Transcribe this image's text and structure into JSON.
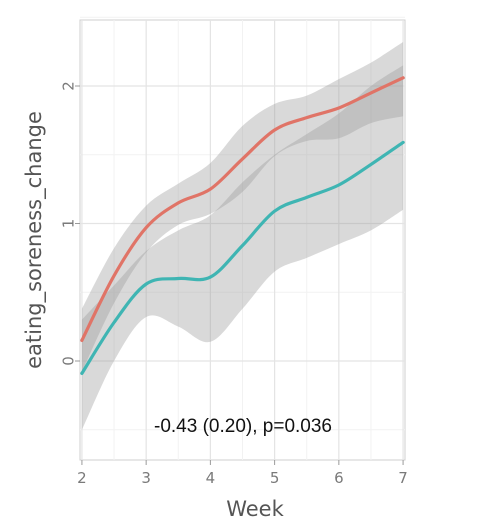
{
  "chart_data": {
    "type": "line",
    "title": "",
    "xlabel": "Week",
    "ylabel": "eating_soreness_change",
    "xlim": [
      1.97,
      7.03
    ],
    "ylim": [
      -0.72,
      2.48
    ],
    "xticks": [
      2,
      3,
      4,
      5,
      6,
      7
    ],
    "yticks": [
      0,
      1,
      2
    ],
    "grid": true,
    "legend": "none",
    "annotation": "-0.43 (0.20), p=0.036",
    "series": [
      {
        "color": "#e07467",
        "x": [
          2,
          2.5,
          3,
          3.5,
          4,
          4.5,
          5,
          5.5,
          6,
          6.5,
          7
        ],
        "y": [
          0.15,
          0.62,
          0.97,
          1.15,
          1.25,
          1.47,
          1.68,
          1.77,
          1.84,
          1.95,
          2.06
        ],
        "ci_upper": [
          0.38,
          0.82,
          1.13,
          1.29,
          1.44,
          1.71,
          1.87,
          1.93,
          2.05,
          2.17,
          2.32
        ],
        "ci_lower": [
          -0.08,
          0.42,
          0.79,
          0.99,
          1.07,
          1.23,
          1.49,
          1.6,
          1.62,
          1.73,
          1.78
        ]
      },
      {
        "color": "#3fb5b3",
        "x": [
          2,
          2.5,
          3,
          3.5,
          4,
          4.5,
          5,
          5.5,
          6,
          6.5,
          7
        ],
        "y": [
          -0.09,
          0.28,
          0.56,
          0.6,
          0.61,
          0.84,
          1.09,
          1.19,
          1.28,
          1.43,
          1.59
        ],
        "ci_upper": [
          0.3,
          0.55,
          0.8,
          0.95,
          1.06,
          1.3,
          1.5,
          1.65,
          1.8,
          2.0,
          2.15
        ],
        "ci_lower": [
          -0.5,
          0.0,
          0.32,
          0.25,
          0.14,
          0.38,
          0.65,
          0.75,
          0.85,
          0.95,
          1.1
        ]
      }
    ]
  }
}
